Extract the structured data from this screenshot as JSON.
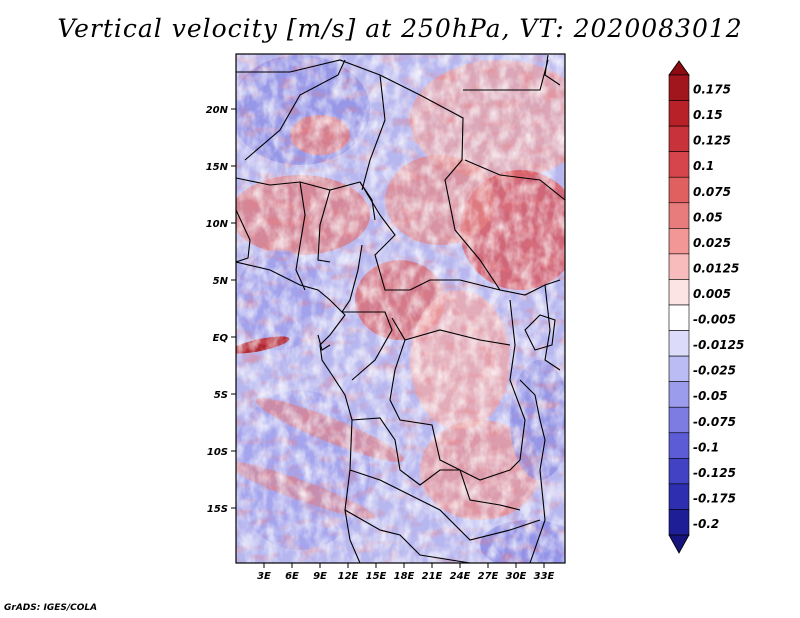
{
  "title": "Vertical velocity [m/s] at 250hPa, VT: 2020083012",
  "footer": "GrADS: IGES/COLA",
  "map": {
    "lat_labels": [
      "20N",
      "15N",
      "10N",
      "5N",
      "EQ",
      "5S",
      "10S",
      "15S"
    ],
    "lon_labels": [
      "3E",
      "6E",
      "9E",
      "12E",
      "15E",
      "18E",
      "21E",
      "24E",
      "27E",
      "30E",
      "33E"
    ]
  },
  "colorbar": {
    "labels": [
      "0.175",
      "0.15",
      "0.125",
      "0.1",
      "0.075",
      "0.05",
      "0.025",
      "0.0125",
      "0.005",
      "-0.005",
      "-0.0125",
      "-0.025",
      "-0.05",
      "-0.075",
      "-0.1",
      "-0.125",
      "-0.175",
      "-0.2"
    ],
    "colors": [
      "#a0161c",
      "#b82128",
      "#c8323a",
      "#d6454c",
      "#e06060",
      "#e87b7b",
      "#f29696",
      "#f9bcbc",
      "#fde4e4",
      "#ffffff",
      "#dcdcfa",
      "#bcbcf4",
      "#9c9cec",
      "#7c7ce2",
      "#5c5cd6",
      "#4242c4",
      "#2e2eb0",
      "#1e1e96"
    ],
    "top_arrow_color": "#8c0c12",
    "bottom_arrow_color": "#14147c"
  }
}
